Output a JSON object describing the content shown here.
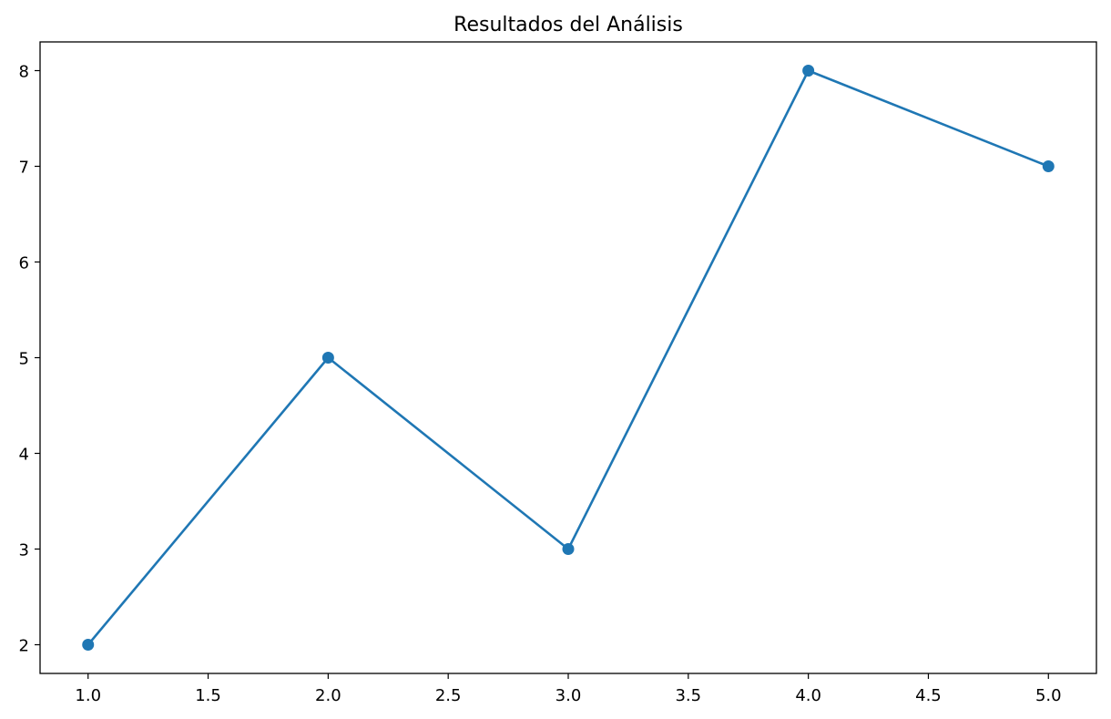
{
  "chart_data": {
    "type": "line",
    "title": "Resultados del Análisis",
    "xlabel": "",
    "ylabel": "",
    "x": [
      1,
      2,
      3,
      4,
      5
    ],
    "series": [
      {
        "values": [
          2,
          5,
          3,
          8,
          7
        ],
        "color": "#1f77b4",
        "marker": "circle"
      }
    ],
    "xlim": [
      0.8,
      5.2
    ],
    "ylim": [
      1.7,
      8.3
    ],
    "xticks": [
      1.0,
      1.5,
      2.0,
      2.5,
      3.0,
      3.5,
      4.0,
      4.5,
      5.0
    ],
    "xtick_labels": [
      "1.0",
      "1.5",
      "2.0",
      "2.5",
      "3.0",
      "3.5",
      "4.0",
      "4.5",
      "5.0"
    ],
    "yticks": [
      2,
      3,
      4,
      5,
      6,
      7,
      8
    ],
    "ytick_labels": [
      "2",
      "3",
      "4",
      "5",
      "6",
      "7",
      "8"
    ],
    "grid": false,
    "legend": "none"
  }
}
